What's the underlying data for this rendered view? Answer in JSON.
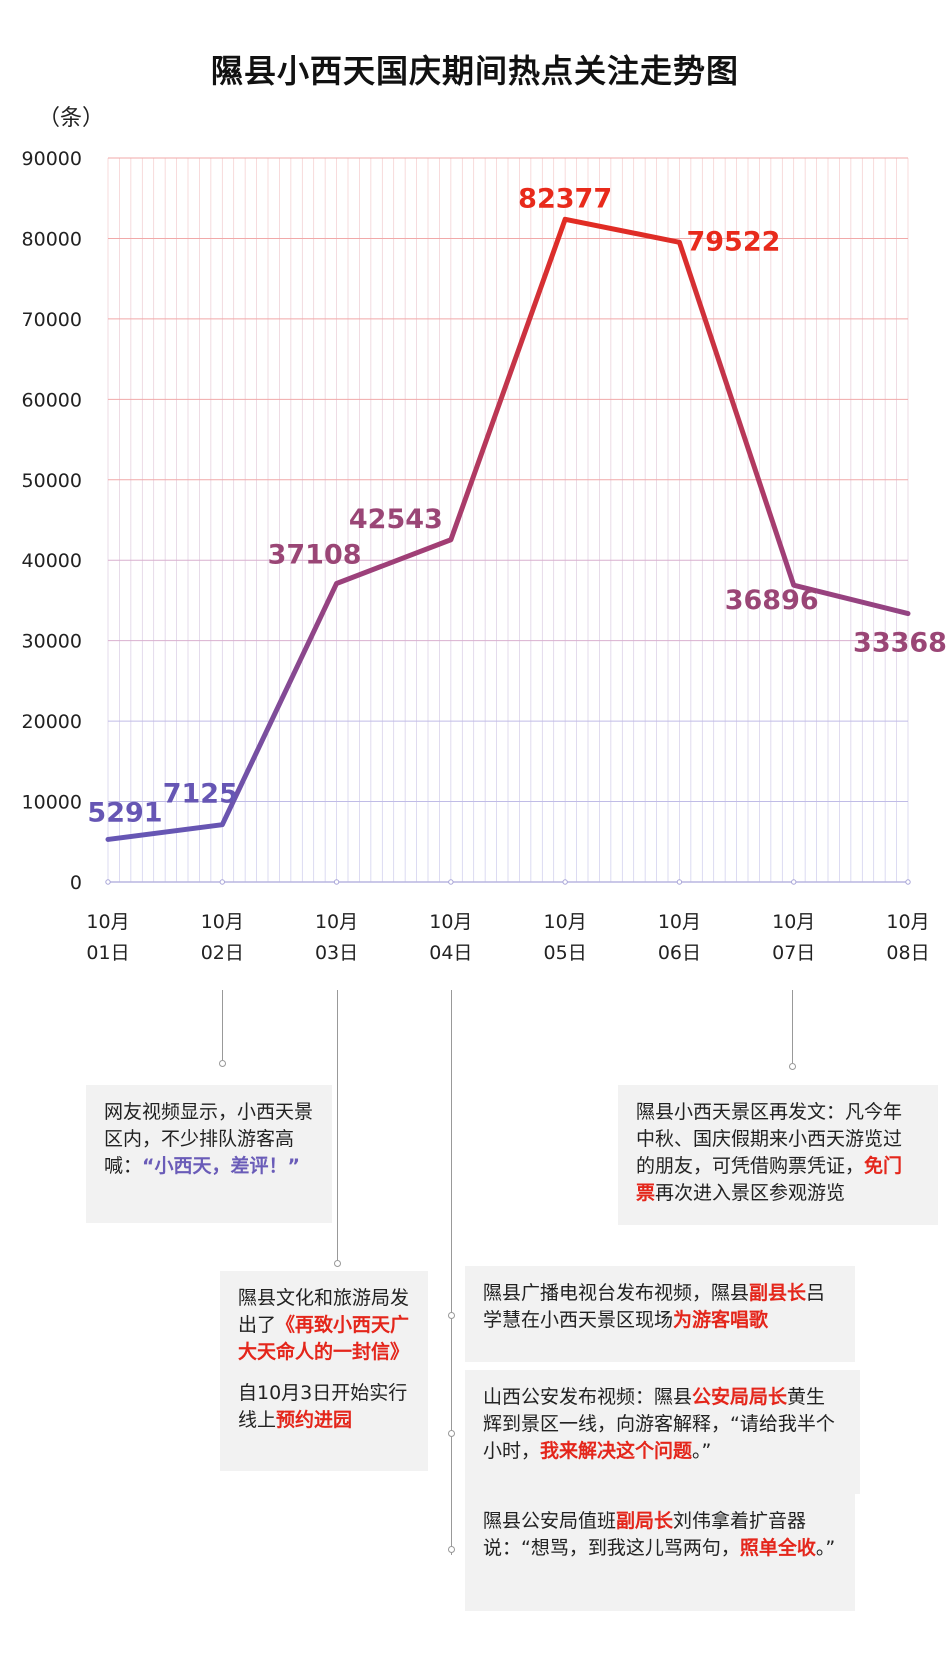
{
  "title": "隰县小西天国庆期间热点关注走势图",
  "unit": "（条）",
  "chart_data": {
    "type": "line",
    "title": "隰县小西天国庆期间热点关注走势图",
    "ylabel": "（条）",
    "xlabel": "",
    "ylim": [
      0,
      90000
    ],
    "yticks": [
      "0",
      "10000",
      "20000",
      "30000",
      "40000",
      "50000",
      "60000",
      "70000",
      "80000",
      "90000"
    ],
    "categories": [
      "10月\n01日",
      "10月\n02日",
      "10月\n03日",
      "10月\n04日",
      "10月\n05日",
      "10月\n06日",
      "10月\n07日",
      "10月\n08日"
    ],
    "category_lines": [
      [
        "10月",
        "01日"
      ],
      [
        "10月",
        "02日"
      ],
      [
        "10月",
        "03日"
      ],
      [
        "10月",
        "04日"
      ],
      [
        "10月",
        "05日"
      ],
      [
        "10月",
        "06日"
      ],
      [
        "10月",
        "07日"
      ],
      [
        "10月",
        "08日"
      ]
    ],
    "values": [
      5291,
      7125,
      37108,
      42543,
      82377,
      79522,
      36896,
      33368
    ],
    "data_labels": [
      "5291",
      "7125",
      "37108",
      "42543",
      "82377",
      "79522",
      "36896",
      "33368"
    ],
    "grid": true,
    "colors": {
      "low": "#6656b4",
      "high": "#e82a1b",
      "late": "#9a4676"
    }
  },
  "annotations": [
    {
      "segments": [
        [
          {
            "t": "网友视频显示，小西天景区内，不少排队游客高喊："
          },
          {
            "t": "“小西天，差评！”",
            "c": "hl-purple"
          }
        ]
      ]
    },
    {
      "segments": [
        [
          {
            "t": "隰县文化和旅游局发出了"
          },
          {
            "t": "《再致小西天广大天命人的一封信》",
            "c": "hl-red"
          }
        ],
        [
          {
            "t": "自10月3日开始实行线上"
          },
          {
            "t": "预约进园",
            "c": "hl-red"
          }
        ]
      ]
    },
    {
      "segments": [
        [
          {
            "t": "隰县广播电视台发布视频，隰县"
          },
          {
            "t": "副县长",
            "c": "hl-red"
          },
          {
            "t": "吕学慧在小西天景区现场"
          },
          {
            "t": "为游客唱歌",
            "c": "hl-red"
          }
        ]
      ]
    },
    {
      "segments": [
        [
          {
            "t": "山西公安发布视频：隰县"
          },
          {
            "t": "公安局局长",
            "c": "hl-red"
          },
          {
            "t": "黄生辉到景区一线，向游客解释，“请给我半个小时，"
          },
          {
            "t": "我来解决这个问题",
            "c": "hl-red"
          },
          {
            "t": "。”"
          }
        ]
      ]
    },
    {
      "segments": [
        [
          {
            "t": "隰县公安局值班"
          },
          {
            "t": "副局长",
            "c": "hl-red"
          },
          {
            "t": "刘伟拿着扩音器说：“想骂，到我这儿骂两句，"
          },
          {
            "t": "照单全收",
            "c": "hl-red"
          },
          {
            "t": "。”"
          }
        ]
      ]
    },
    {
      "segments": [
        [
          {
            "t": "隰县小西天景区再发文：凡今年中秋、国庆假期来小西天游览过的朋友，可凭借购票凭证，"
          },
          {
            "t": "免门票",
            "c": "hl-red"
          },
          {
            "t": "再次进入景区参观游览"
          }
        ]
      ]
    }
  ]
}
